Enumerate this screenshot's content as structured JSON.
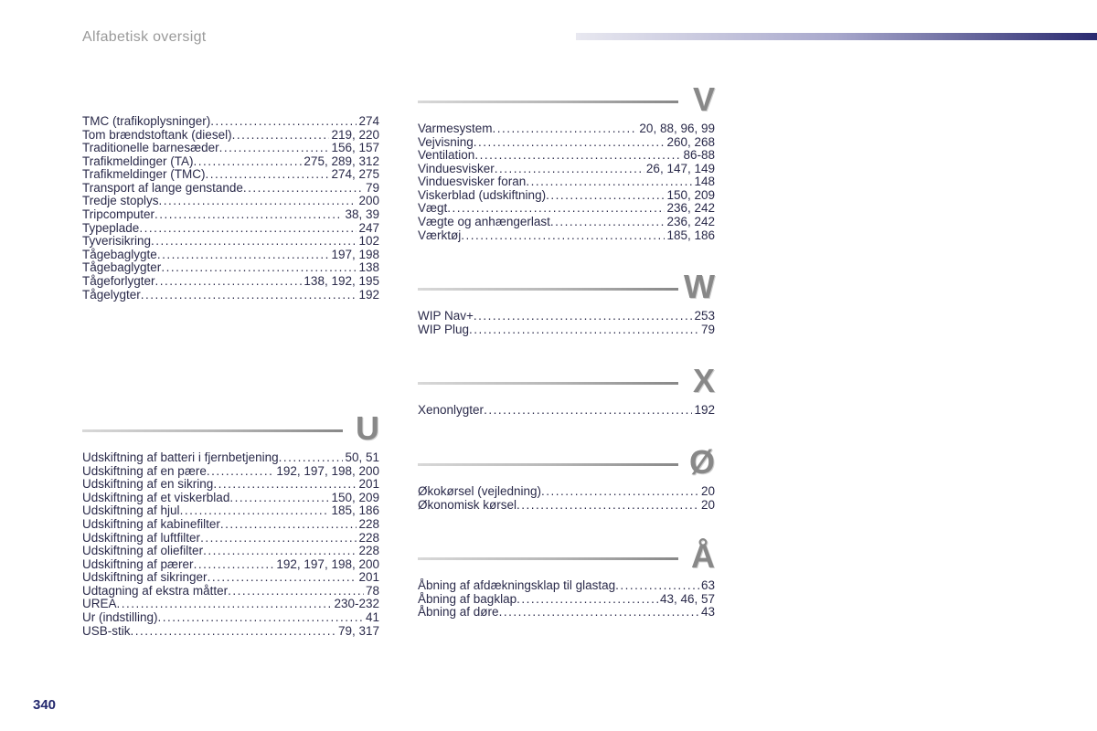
{
  "header": {
    "title": "Alfabetisk oversigt"
  },
  "page_number": "340",
  "colors": {
    "header_text": "#9a9a9a",
    "body_text": "#2a2a4a",
    "letter": "#888888",
    "gradient_start": "#e8e8f0",
    "gradient_end": "#2a2a70",
    "pagenum": "#23286e"
  },
  "typography": {
    "header_fontsize": 16,
    "body_fontsize": 13.5,
    "letter_fontsize": 36
  },
  "left_sections": [
    {
      "letter": "",
      "entries": [
        {
          "label": "TMC (trafikoplysninger)",
          "pages": "274"
        },
        {
          "label": "Tom brændstoftank (diesel)",
          "pages": "219, 220"
        },
        {
          "label": "Traditionelle barnesæder",
          "pages": "156, 157"
        },
        {
          "label": "Trafikmeldinger (TA)",
          "pages": "275, 289, 312"
        },
        {
          "label": "Trafikmeldinger (TMC)",
          "pages": "274, 275"
        },
        {
          "label": "Transport af lange genstande",
          "pages": "79"
        },
        {
          "label": "Tredje stoplys",
          "pages": "200"
        },
        {
          "label": "Tripcomputer",
          "pages": "38, 39"
        },
        {
          "label": "Typeplade",
          "pages": "247"
        },
        {
          "label": "Tyverisikring",
          "pages": "102"
        },
        {
          "label": "Tågebaglygte",
          "pages": "197, 198"
        },
        {
          "label": "Tågebaglygter",
          "pages": "138"
        },
        {
          "label": "Tågeforlygter",
          "pages": "138, 192, 195"
        },
        {
          "label": "Tågelygter",
          "pages": "192"
        }
      ]
    },
    {
      "letter": "U",
      "entries": [
        {
          "label": "Udskiftning af batteri i fjernbetjening",
          "pages": "50, 51"
        },
        {
          "label": "Udskiftning af en pære",
          "pages": "192, 197, 198, 200"
        },
        {
          "label": "Udskiftning af en sikring",
          "pages": "201"
        },
        {
          "label": "Udskiftning af et viskerblad",
          "pages": "150, 209"
        },
        {
          "label": "Udskiftning af hjul",
          "pages": "185, 186"
        },
        {
          "label": "Udskiftning af kabinefilter",
          "pages": "228"
        },
        {
          "label": "Udskiftning af luftfilter",
          "pages": "228"
        },
        {
          "label": "Udskiftning af oliefilter",
          "pages": "228"
        },
        {
          "label": "Udskiftning af pærer",
          "pages": "192, 197, 198, 200"
        },
        {
          "label": "Udskiftning af sikringer",
          "pages": "201"
        },
        {
          "label": "Udtagning af ekstra måtter",
          "pages": "78"
        },
        {
          "label": "UREA",
          "pages": "230-232"
        },
        {
          "label": "Ur (indstilling)",
          "pages": "41"
        },
        {
          "label": "USB-stik",
          "pages": "79, 317"
        }
      ]
    }
  ],
  "right_sections": [
    {
      "letter": "V",
      "entries": [
        {
          "label": "Varmesystem",
          "pages": "20, 88, 96, 99"
        },
        {
          "label": "Vejvisning",
          "pages": "260, 268"
        },
        {
          "label": "Ventilation",
          "pages": "86-88"
        },
        {
          "label": "Vinduesvisker",
          "pages": "26, 147, 149"
        },
        {
          "label": "Vinduesvisker foran",
          "pages": "148"
        },
        {
          "label": "Viskerblad (udskiftning)",
          "pages": "150, 209"
        },
        {
          "label": "Vægt",
          "pages": "236, 242"
        },
        {
          "label": "Vægte og anhængerlast",
          "pages": "236, 242"
        },
        {
          "label": "Værktøj",
          "pages": "185, 186"
        }
      ]
    },
    {
      "letter": "W",
      "entries": [
        {
          "label": "WIP Nav+",
          "pages": "253"
        },
        {
          "label": "WIP Plug",
          "pages": "79"
        }
      ]
    },
    {
      "letter": "X",
      "entries": [
        {
          "label": "Xenonlygter",
          "pages": "192"
        }
      ]
    },
    {
      "letter": "Ø",
      "entries": [
        {
          "label": "Økokørsel (vejledning)",
          "pages": "20"
        },
        {
          "label": "Økonomisk kørsel",
          "pages": "20"
        }
      ]
    },
    {
      "letter": "Å",
      "entries": [
        {
          "label": "Åbning af afdækningsklap til glastag",
          "pages": "63"
        },
        {
          "label": "Åbning af bagklap",
          "pages": "43, 46, 57"
        },
        {
          "label": "Åbning af døre",
          "pages": "43"
        }
      ]
    }
  ]
}
